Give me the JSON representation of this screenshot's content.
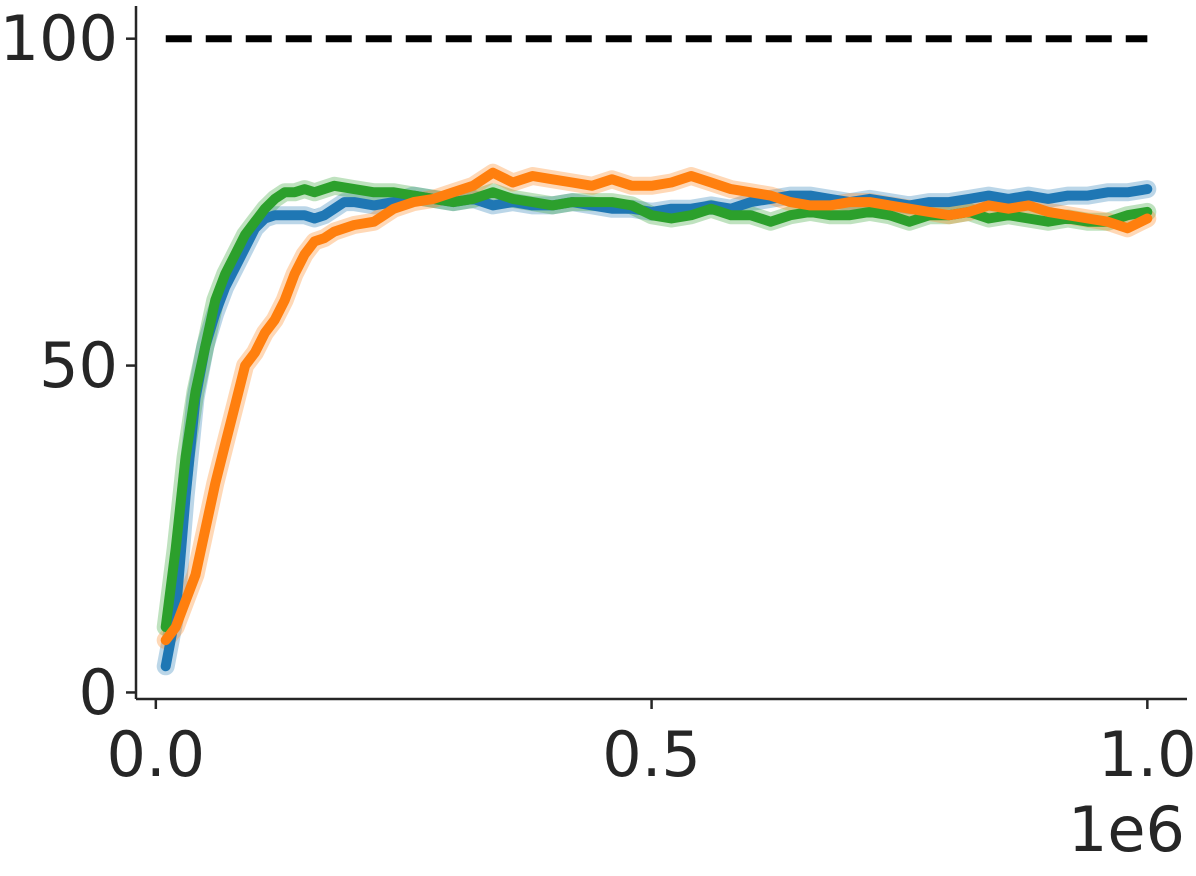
{
  "chart_data": {
    "type": "line",
    "title": "",
    "xlabel": "",
    "ylabel": "",
    "x_offset_label": "1e6",
    "xlim": [
      -0.02,
      1.04
    ],
    "ylim": [
      -1,
      105
    ],
    "x_ticks": [
      0.0,
      0.5,
      1.0
    ],
    "x_tick_labels": [
      "0.0",
      "0.5",
      "1.0"
    ],
    "y_ticks": [
      0,
      50,
      100
    ],
    "y_tick_labels": [
      "0",
      "50",
      "100"
    ],
    "grid": false,
    "legend": "none",
    "reference_line": {
      "y": 100,
      "x_range": [
        0.01,
        1.0
      ],
      "style": "dashed",
      "color": "#000000"
    },
    "colors": {
      "blue": "#1f77b4",
      "orange": "#ff7f0e",
      "green": "#2ca02c",
      "axis": "#262626"
    },
    "series": [
      {
        "color": "#1f77b4",
        "points": [
          [
            0.01,
            4
          ],
          [
            0.02,
            12
          ],
          [
            0.03,
            30
          ],
          [
            0.04,
            45
          ],
          [
            0.05,
            53
          ],
          [
            0.06,
            58
          ],
          [
            0.07,
            62
          ],
          [
            0.08,
            65
          ],
          [
            0.09,
            68
          ],
          [
            0.1,
            71
          ],
          [
            0.11,
            72.5
          ],
          [
            0.12,
            73
          ],
          [
            0.13,
            73
          ],
          [
            0.14,
            73
          ],
          [
            0.15,
            73
          ],
          [
            0.16,
            72.5
          ],
          [
            0.17,
            73
          ],
          [
            0.18,
            74
          ],
          [
            0.19,
            75
          ],
          [
            0.2,
            75
          ],
          [
            0.22,
            74.5
          ],
          [
            0.24,
            75
          ],
          [
            0.26,
            76
          ],
          [
            0.28,
            75.5
          ],
          [
            0.3,
            75
          ],
          [
            0.32,
            75.5
          ],
          [
            0.34,
            74.5
          ],
          [
            0.36,
            75
          ],
          [
            0.38,
            74.5
          ],
          [
            0.4,
            74.5
          ],
          [
            0.42,
            75
          ],
          [
            0.44,
            74.5
          ],
          [
            0.46,
            74
          ],
          [
            0.48,
            74
          ],
          [
            0.5,
            73.5
          ],
          [
            0.52,
            74
          ],
          [
            0.54,
            74
          ],
          [
            0.56,
            74.5
          ],
          [
            0.58,
            74
          ],
          [
            0.6,
            75
          ],
          [
            0.62,
            75.5
          ],
          [
            0.64,
            76
          ],
          [
            0.66,
            76
          ],
          [
            0.68,
            75.5
          ],
          [
            0.7,
            75
          ],
          [
            0.72,
            75.5
          ],
          [
            0.74,
            75
          ],
          [
            0.76,
            74.5
          ],
          [
            0.78,
            75
          ],
          [
            0.8,
            75
          ],
          [
            0.82,
            75.5
          ],
          [
            0.84,
            76
          ],
          [
            0.86,
            75.5
          ],
          [
            0.88,
            76
          ],
          [
            0.9,
            75.5
          ],
          [
            0.92,
            76
          ],
          [
            0.94,
            76
          ],
          [
            0.96,
            76.5
          ],
          [
            0.98,
            76.5
          ],
          [
            1.0,
            77
          ]
        ]
      },
      {
        "color": "#2ca02c",
        "points": [
          [
            0.01,
            10
          ],
          [
            0.02,
            22
          ],
          [
            0.03,
            36
          ],
          [
            0.04,
            46
          ],
          [
            0.05,
            53
          ],
          [
            0.06,
            60
          ],
          [
            0.07,
            64
          ],
          [
            0.08,
            67
          ],
          [
            0.09,
            70
          ],
          [
            0.1,
            72
          ],
          [
            0.11,
            74
          ],
          [
            0.12,
            75.5
          ],
          [
            0.13,
            76.5
          ],
          [
            0.14,
            76.5
          ],
          [
            0.15,
            77
          ],
          [
            0.16,
            76.5
          ],
          [
            0.18,
            77.5
          ],
          [
            0.2,
            77
          ],
          [
            0.22,
            76.5
          ],
          [
            0.24,
            76.5
          ],
          [
            0.26,
            76
          ],
          [
            0.28,
            75.5
          ],
          [
            0.3,
            75
          ],
          [
            0.32,
            75.5
          ],
          [
            0.34,
            76.5
          ],
          [
            0.36,
            75.5
          ],
          [
            0.38,
            75
          ],
          [
            0.4,
            74.5
          ],
          [
            0.42,
            75
          ],
          [
            0.44,
            75
          ],
          [
            0.46,
            75
          ],
          [
            0.48,
            74.5
          ],
          [
            0.5,
            73
          ],
          [
            0.52,
            72.5
          ],
          [
            0.54,
            73
          ],
          [
            0.56,
            74
          ],
          [
            0.58,
            73
          ],
          [
            0.6,
            73
          ],
          [
            0.62,
            72
          ],
          [
            0.64,
            73
          ],
          [
            0.66,
            73.5
          ],
          [
            0.68,
            73
          ],
          [
            0.7,
            73
          ],
          [
            0.72,
            73.5
          ],
          [
            0.74,
            73
          ],
          [
            0.76,
            72
          ],
          [
            0.78,
            73
          ],
          [
            0.8,
            73
          ],
          [
            0.82,
            73.5
          ],
          [
            0.84,
            72.5
          ],
          [
            0.86,
            73
          ],
          [
            0.88,
            72.5
          ],
          [
            0.9,
            72
          ],
          [
            0.92,
            72.5
          ],
          [
            0.94,
            72
          ],
          [
            0.96,
            72
          ],
          [
            0.98,
            73
          ],
          [
            1.0,
            73.5
          ]
        ]
      },
      {
        "color": "#ff7f0e",
        "points": [
          [
            0.01,
            8
          ],
          [
            0.02,
            10
          ],
          [
            0.03,
            14
          ],
          [
            0.04,
            18
          ],
          [
            0.05,
            25
          ],
          [
            0.06,
            32
          ],
          [
            0.07,
            38
          ],
          [
            0.08,
            44
          ],
          [
            0.09,
            50
          ],
          [
            0.1,
            52
          ],
          [
            0.11,
            55
          ],
          [
            0.12,
            57
          ],
          [
            0.13,
            60
          ],
          [
            0.14,
            64
          ],
          [
            0.15,
            67
          ],
          [
            0.16,
            69
          ],
          [
            0.17,
            69.5
          ],
          [
            0.18,
            70.5
          ],
          [
            0.2,
            71.5
          ],
          [
            0.22,
            72
          ],
          [
            0.24,
            74
          ],
          [
            0.26,
            75
          ],
          [
            0.28,
            75.5
          ],
          [
            0.3,
            76.5
          ],
          [
            0.32,
            77.5
          ],
          [
            0.34,
            79.5
          ],
          [
            0.36,
            78
          ],
          [
            0.38,
            79
          ],
          [
            0.4,
            78.5
          ],
          [
            0.42,
            78
          ],
          [
            0.44,
            77.5
          ],
          [
            0.46,
            78.5
          ],
          [
            0.48,
            77.5
          ],
          [
            0.5,
            77.5
          ],
          [
            0.52,
            78
          ],
          [
            0.54,
            79
          ],
          [
            0.56,
            78
          ],
          [
            0.58,
            77
          ],
          [
            0.6,
            76.5
          ],
          [
            0.62,
            76
          ],
          [
            0.64,
            75
          ],
          [
            0.66,
            74.5
          ],
          [
            0.68,
            74.5
          ],
          [
            0.7,
            75
          ],
          [
            0.72,
            75
          ],
          [
            0.74,
            74.5
          ],
          [
            0.76,
            74
          ],
          [
            0.78,
            73.5
          ],
          [
            0.8,
            73
          ],
          [
            0.82,
            73.5
          ],
          [
            0.84,
            74.5
          ],
          [
            0.86,
            74
          ],
          [
            0.88,
            74.5
          ],
          [
            0.9,
            73.5
          ],
          [
            0.92,
            73
          ],
          [
            0.94,
            72.5
          ],
          [
            0.96,
            72
          ],
          [
            0.98,
            71
          ],
          [
            1.0,
            72.5
          ]
        ]
      }
    ]
  }
}
